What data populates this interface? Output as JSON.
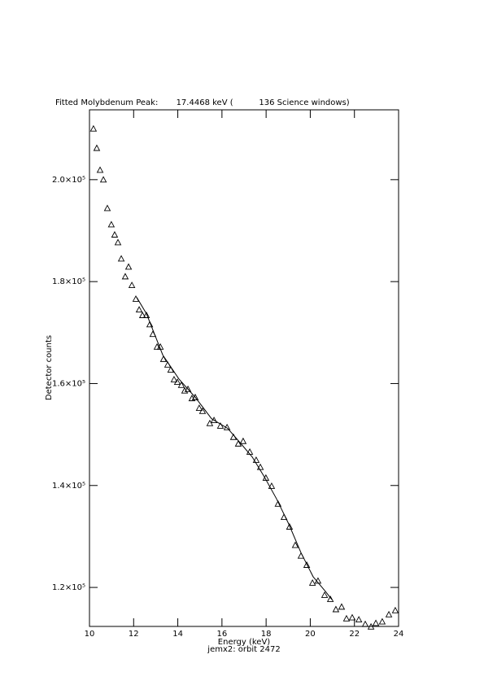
{
  "chart_data": {
    "type": "scatter",
    "title": "Fitted Molybdenum Peak:       17.4468 keV (          136 Science windows)",
    "x_label": "Energy (keV)",
    "subtitle": "jemx2: orbit 2472",
    "y_label": "Detector counts",
    "xlim": [
      10,
      24
    ],
    "ylim": [
      112350,
      213700
    ],
    "xticks": [
      10,
      12,
      14,
      16,
      18,
      20,
      22,
      24
    ],
    "yticks": [
      {
        "value": 120000,
        "label": "1.2×10⁵"
      },
      {
        "value": 140000,
        "label": "1.4×10⁵"
      },
      {
        "value": 160000,
        "label": "1.6×10⁵"
      },
      {
        "value": 180000,
        "label": "1.8×10⁵"
      },
      {
        "value": 200000,
        "label": "2.0×10⁵"
      }
    ],
    "color": "#000000",
    "series": [
      {
        "x": [
          10.18,
          10.33,
          10.48,
          10.63,
          10.81,
          10.99,
          11.14,
          11.29,
          11.44,
          11.62,
          11.77,
          11.92,
          12.1,
          12.25,
          12.4,
          12.58,
          12.73,
          12.87,
          13.06,
          13.21,
          13.35,
          13.54,
          13.68,
          13.83,
          13.98,
          14.16,
          14.31,
          14.46,
          14.64,
          14.79,
          14.97,
          15.12,
          15.45,
          15.64,
          15.93,
          16.23,
          16.52,
          16.74,
          16.96,
          17.26,
          17.55,
          17.74,
          17.99,
          18.25,
          18.54,
          18.81,
          19.06,
          19.32,
          19.58,
          19.84,
          20.1,
          20.35,
          20.65,
          20.91,
          21.16,
          21.42,
          21.64,
          21.9,
          22.2,
          22.49,
          22.75,
          22.97,
          23.26,
          23.56,
          23.85
        ],
        "values": [
          210000,
          206200,
          201900,
          200000,
          194400,
          191200,
          189200,
          187700,
          184500,
          181000,
          182900,
          179300,
          176600,
          174500,
          173400,
          173400,
          171600,
          169700,
          167200,
          167200,
          164800,
          163700,
          162700,
          160800,
          160300,
          159700,
          158600,
          158900,
          157100,
          157300,
          155200,
          154600,
          152200,
          152800,
          151700,
          151400,
          149500,
          148200,
          148700,
          146600,
          145000,
          143600,
          141500,
          139900,
          136400,
          133800,
          131900,
          128300,
          126200,
          124400,
          120900,
          121300,
          118500,
          117700,
          115700,
          116200,
          113900,
          114100,
          113700,
          112800,
          112300,
          113000,
          113300,
          114700,
          115500
        ]
      },
      {
        "x": [
          12.14,
          12.58,
          13.32,
          14.05,
          14.79,
          15.53,
          16.26,
          16.82,
          17.37,
          17.92,
          18.47,
          19.03,
          19.58,
          20.13,
          20.69,
          20.98
        ],
        "values": [
          176900,
          173700,
          165600,
          160900,
          157300,
          153100,
          151200,
          148400,
          145600,
          141700,
          137400,
          132400,
          126800,
          122100,
          119200,
          117600
        ]
      }
    ]
  }
}
